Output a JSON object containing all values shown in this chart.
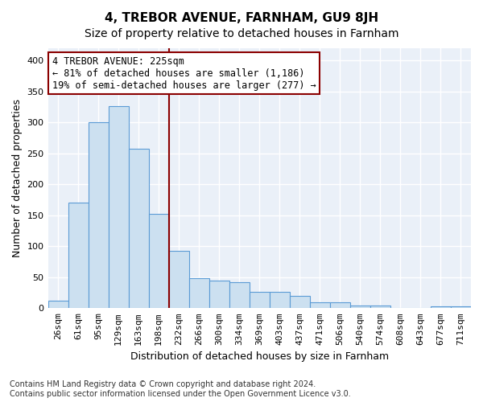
{
  "title": "4, TREBOR AVENUE, FARNHAM, GU9 8JH",
  "subtitle": "Size of property relative to detached houses in Farnham",
  "xlabel": "Distribution of detached houses by size in Farnham",
  "ylabel": "Number of detached properties",
  "bin_labels": [
    "26sqm",
    "61sqm",
    "95sqm",
    "129sqm",
    "163sqm",
    "198sqm",
    "232sqm",
    "266sqm",
    "300sqm",
    "334sqm",
    "369sqm",
    "403sqm",
    "437sqm",
    "471sqm",
    "506sqm",
    "540sqm",
    "574sqm",
    "608sqm",
    "643sqm",
    "677sqm",
    "711sqm"
  ],
  "bar_heights": [
    12,
    170,
    301,
    326,
    258,
    152,
    93,
    49,
    44,
    42,
    27,
    27,
    20,
    10,
    9,
    4,
    4,
    1,
    0,
    3,
    3
  ],
  "bar_color": "#cce0f0",
  "bar_edge_color": "#5b9bd5",
  "vline_pos": 5.5,
  "vline_color": "#8b0000",
  "annotation_text": "4 TREBOR AVENUE: 225sqm\n← 81% of detached houses are smaller (1,186)\n19% of semi-detached houses are larger (277) →",
  "annotation_box_color": "#ffffff",
  "annotation_box_edge": "#8b0000",
  "ylim": [
    0,
    420
  ],
  "yticks": [
    0,
    50,
    100,
    150,
    200,
    250,
    300,
    350,
    400
  ],
  "background_color": "#ffffff",
  "plot_bg_color": "#eaf0f8",
  "grid_color": "#ffffff",
  "footer_text": "Contains HM Land Registry data © Crown copyright and database right 2024.\nContains public sector information licensed under the Open Government Licence v3.0.",
  "title_fontsize": 11,
  "subtitle_fontsize": 10,
  "axis_label_fontsize": 9,
  "tick_fontsize": 8,
  "annotation_fontsize": 8.5,
  "footer_fontsize": 7
}
